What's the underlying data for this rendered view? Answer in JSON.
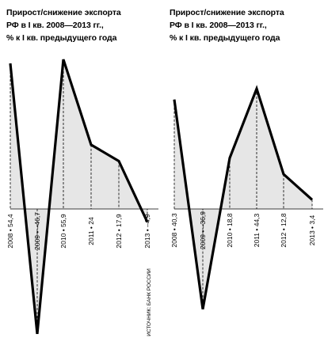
{
  "colors": {
    "fill": "#e6e6e6",
    "line": "#000000",
    "guide": "#000000"
  },
  "source": "ИСТОЧНИК: БАНК РОССИИ",
  "chart_data": [
    {
      "type": "area",
      "title_lines": [
        "Прирост/снижение экспорта",
        "РФ в I кв. 2008—2013 гг.,",
        "% к I кв. предыдущего года"
      ],
      "categories": [
        "2008",
        "2009",
        "2010",
        "2011",
        "2012",
        "2013"
      ],
      "values": [
        54.4,
        -46.7,
        55.9,
        24,
        17.9,
        -4.9
      ],
      "value_labels": [
        "54,4",
        "–46,7",
        "55,9",
        "24",
        "17,9",
        "–4,9"
      ],
      "label_sep": " • ",
      "xlabel": "",
      "ylabel": "",
      "grid": false,
      "legend": "none"
    },
    {
      "type": "area",
      "title_lines": [
        "Прирост/снижение экспорта",
        "РФ в I кв. 2008—2013 гг.,",
        "% к I кв. предыдущего года"
      ],
      "categories": [
        "2008",
        "2009",
        "2010",
        "2011",
        "2012",
        "2013"
      ],
      "values": [
        40.3,
        -36.9,
        18.8,
        44.3,
        12.8,
        3.4
      ],
      "value_labels": [
        "40,3",
        "–36,9",
        "18,8",
        "44,3",
        "12,8",
        "3,4"
      ],
      "label_sep": " • ",
      "xlabel": "",
      "ylabel": "",
      "grid": false,
      "legend": "none"
    }
  ]
}
